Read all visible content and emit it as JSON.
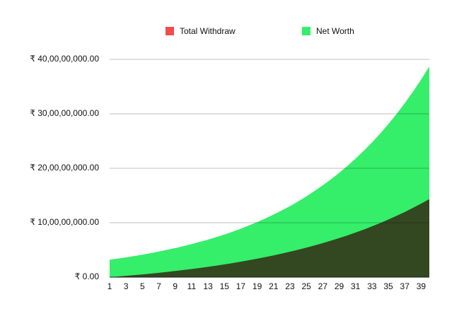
{
  "chart_data": {
    "type": "area",
    "categories": [
      1,
      null,
      3,
      null,
      5,
      null,
      7,
      null,
      9,
      null,
      11,
      null,
      13,
      null,
      15,
      null,
      17,
      null,
      19,
      null,
      21,
      null,
      23,
      null,
      25,
      null,
      27,
      null,
      29,
      null,
      31,
      null,
      33,
      null,
      35,
      null,
      37,
      null,
      39,
      null
    ],
    "series": [
      {
        "name": "Net Worth",
        "color": "#35ee6a",
        "values": [
          32000000,
          34100000,
          36400000,
          38800000,
          41300000,
          44000000,
          47000000,
          50100000,
          53400000,
          56900000,
          60700000,
          64700000,
          68900000,
          73500000,
          78300000,
          83500000,
          89000000,
          94900000,
          101100000,
          107800000,
          114900000,
          122500000,
          130600000,
          139200000,
          148400000,
          158200000,
          168600000,
          179700000,
          191600000,
          204200000,
          217700000,
          232100000,
          247400000,
          263700000,
          281100000,
          299700000,
          319400000,
          340500000,
          363000000,
          387000000
        ]
      },
      {
        "name": "Total Withdraw",
        "color": "#f24c4c",
        "values": [
          0,
          1200000,
          2400000,
          3700000,
          5100000,
          6500000,
          8000000,
          9600000,
          11300000,
          13100000,
          14900000,
          16900000,
          19000000,
          21100000,
          23400000,
          25800000,
          28400000,
          31100000,
          33900000,
          36900000,
          40000000,
          43300000,
          46700000,
          50400000,
          54200000,
          58200000,
          62500000,
          67000000,
          71700000,
          76700000,
          81900000,
          87400000,
          93300000,
          99400000,
          105800000,
          112600000,
          119700000,
          127200000,
          135100000,
          143400000
        ]
      }
    ],
    "legend_order": [
      1,
      0
    ],
    "legend": "top",
    "ylim": [
      0,
      400000000
    ],
    "yticks": [
      {
        "value": 0,
        "label": "₹ 0.00"
      },
      {
        "value": 100000000,
        "label": "₹ 10,00,00,000.00"
      },
      {
        "value": 200000000,
        "label": "₹ 20,00,00,000.00"
      },
      {
        "value": 300000000,
        "label": "₹ 30,00,00,000.00"
      },
      {
        "value": 400000000,
        "label": "₹ 40,00,00,000.00"
      }
    ],
    "grid": true
  }
}
